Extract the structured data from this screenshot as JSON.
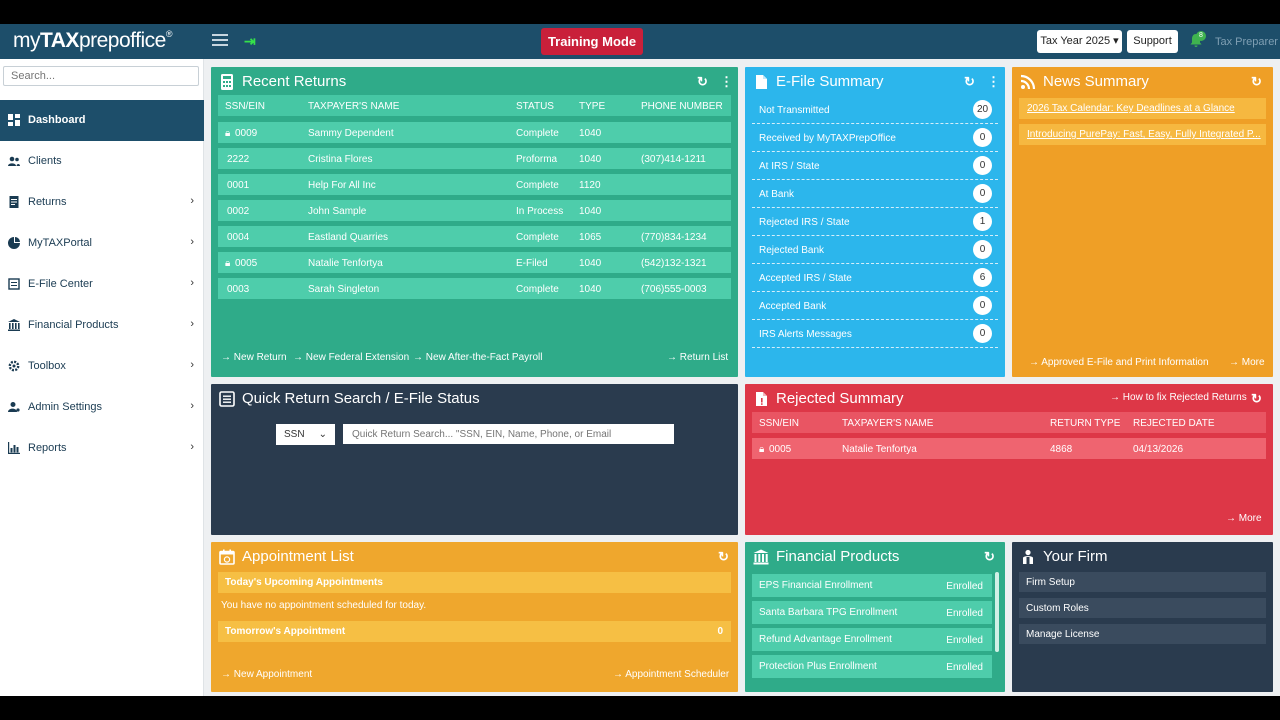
{
  "header": {
    "logo_pre": "my",
    "logo_bold": "TAX",
    "logo_post": "prepoffice",
    "logo_mark": "®",
    "training_mode": "Training Mode",
    "tax_year": "Tax Year 2025 ▾",
    "support": "Support",
    "bell_count": "8",
    "user_role": "Tax Preparer ▾"
  },
  "sidebar": {
    "search_placeholder": "Search...",
    "items": [
      {
        "label": "Dashboard",
        "chev": ""
      },
      {
        "label": "Clients",
        "chev": ""
      },
      {
        "label": "Returns",
        "chev": "›"
      },
      {
        "label": "MyTAXPortal",
        "chev": "›"
      },
      {
        "label": "E-File Center",
        "chev": "›"
      },
      {
        "label": "Financial Products",
        "chev": "›"
      },
      {
        "label": "Toolbox",
        "chev": "›"
      },
      {
        "label": "Admin Settings",
        "chev": "›"
      },
      {
        "label": "Reports",
        "chev": "›"
      }
    ]
  },
  "recent": {
    "title": "Recent Returns",
    "headers": [
      "SSN/EIN",
      "TAXPAYER'S NAME",
      "STATUS",
      "TYPE",
      "PHONE NUMBER"
    ],
    "rows": [
      {
        "ssn": "0009",
        "name": "Sammy Dependent",
        "status": "Complete",
        "type": "1040",
        "phone": ""
      },
      {
        "ssn": "2222",
        "name": "Cristina Flores",
        "status": "Proforma",
        "type": "1040",
        "phone": "(307)414-1211"
      },
      {
        "ssn": "0001",
        "name": "Help For All Inc",
        "status": "Complete",
        "type": "1120",
        "phone": ""
      },
      {
        "ssn": "0002",
        "name": "John Sample",
        "status": "In Process",
        "type": "1040",
        "phone": ""
      },
      {
        "ssn": "0004",
        "name": "Eastland Quarries",
        "status": "Complete",
        "type": "1065",
        "phone": "(770)834-1234"
      },
      {
        "ssn": "0005",
        "name": "Natalie Tenfortya",
        "status": "E-Filed",
        "type": "1040",
        "phone": "(542)132-1321"
      },
      {
        "ssn": "0003",
        "name": "Sarah Singleton",
        "status": "Complete",
        "type": "1040",
        "phone": "(706)555-0003"
      }
    ],
    "links": {
      "new_return": "New Return",
      "new_ext": "New Federal Extension",
      "new_aft": "New After-the-Fact Payroll",
      "return_list": "Return List"
    }
  },
  "efile": {
    "title": "E-File Summary",
    "rows": [
      {
        "label": "Not Transmitted",
        "count": "20"
      },
      {
        "label": "Received by MyTAXPrepOffice",
        "count": "0"
      },
      {
        "label": "At IRS / State",
        "count": "0"
      },
      {
        "label": "At Bank",
        "count": "0"
      },
      {
        "label": "Rejected IRS / State",
        "count": "1"
      },
      {
        "label": "Rejected Bank",
        "count": "0"
      },
      {
        "label": "Accepted IRS / State",
        "count": "6"
      },
      {
        "label": "Accepted Bank",
        "count": "0"
      },
      {
        "label": "IRS Alerts Messages",
        "count": "0"
      }
    ]
  },
  "news": {
    "title": "News Summary",
    "items": [
      "2026 Tax Calendar: Key Deadlines at a Glance",
      "Introducing PurePay: Fast, Easy, Fully Integrated P..."
    ],
    "approved": "Approved E-File and Print Information",
    "more": "More"
  },
  "quick": {
    "title": "Quick Return Search / E-File Status",
    "select": "SSN",
    "placeholder": "Quick Return Search... \"SSN, EIN, Name, Phone, or Email"
  },
  "rejected": {
    "title": "Rejected Summary",
    "howto": "How to fix Rejected Returns",
    "headers": [
      "SSN/EIN",
      "TAXPAYER'S NAME",
      "RETURN TYPE",
      "REJECTED DATE"
    ],
    "row": {
      "ssn": "0005",
      "name": "Natalie Tenfortya",
      "type": "4868",
      "date": "04/13/2026"
    },
    "more": "More"
  },
  "appt": {
    "title": "Appointment List",
    "today": "Today's Upcoming Appointments",
    "none": "You have no appointment scheduled for today.",
    "tomorrow": "Tomorrow's Appointment",
    "tomorrow_count": "0",
    "new": "New Appointment",
    "scheduler": "Appointment Scheduler"
  },
  "fin": {
    "title": "Financial Products",
    "rows": [
      {
        "label": "EPS Financial Enrollment",
        "status": "Enrolled"
      },
      {
        "label": "Santa Barbara TPG Enrollment",
        "status": "Enrolled"
      },
      {
        "label": "Refund Advantage Enrollment",
        "status": "Enrolled"
      },
      {
        "label": "Protection Plus Enrollment",
        "status": "Enrolled"
      }
    ]
  },
  "firm": {
    "title": "Your Firm",
    "rows": [
      "Firm Setup",
      "Custom Roles",
      "Manage License"
    ]
  }
}
